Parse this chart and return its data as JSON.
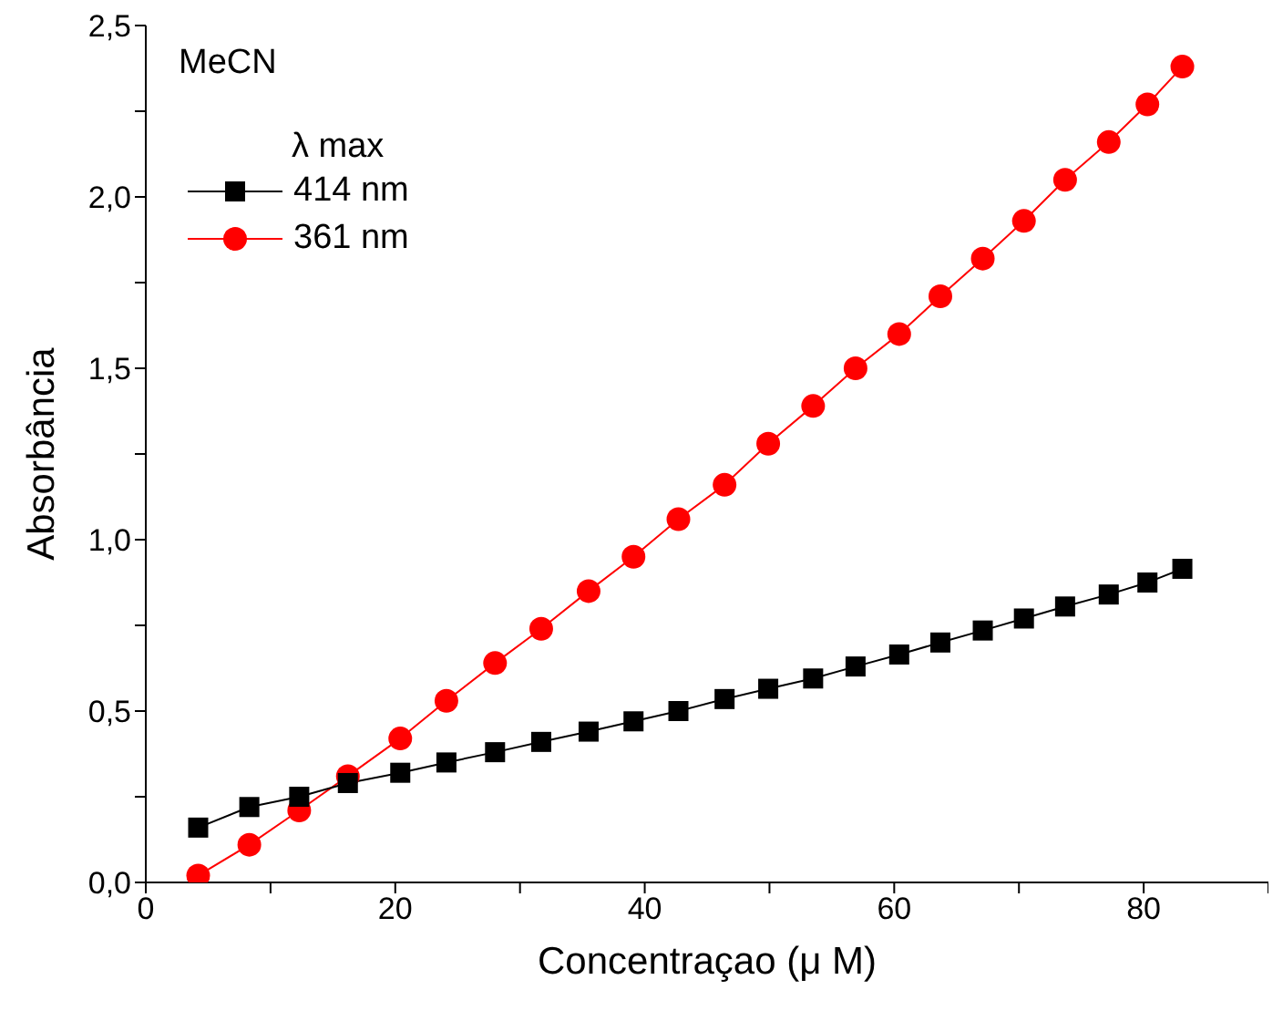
{
  "chart_data": {
    "type": "line",
    "xlabel": "Concentraçao (μ M)",
    "ylabel": "Absorbância",
    "legend_title": "λ max",
    "annotations": [
      "MeCN"
    ],
    "xlim": [
      0,
      90
    ],
    "xticks": [
      0,
      {
        "value": 10,
        "label": null
      },
      20,
      {
        "value": 30,
        "label": null
      },
      40,
      {
        "value": 50,
        "label": null
      },
      60,
      {
        "value": 70,
        "label": null
      },
      80,
      {
        "value": 90,
        "label": null
      }
    ],
    "ylim": [
      0,
      2.5
    ],
    "yticks": [
      {
        "value": 0,
        "label": "0,0"
      },
      {
        "value": 0.25,
        "label": null
      },
      {
        "value": 0.5,
        "label": "0,5"
      },
      {
        "value": 0.75,
        "label": null
      },
      {
        "value": 1,
        "label": "1,0"
      },
      {
        "value": 1.25,
        "label": null
      },
      {
        "value": 1.5,
        "label": "1,5"
      },
      {
        "value": 1.75,
        "label": null
      },
      {
        "value": 2,
        "label": "2,0"
      },
      {
        "value": 2.25,
        "label": null
      },
      {
        "value": 2.5,
        "label": "2,5"
      }
    ],
    "grid": false,
    "legend": "top left",
    "line_style": "solid",
    "x": [
      4.2,
      8.3,
      12.3,
      16.2,
      20.4,
      24.1,
      28.0,
      31.7,
      35.5,
      39.1,
      42.7,
      46.4,
      49.9,
      53.5,
      56.9,
      60.4,
      63.7,
      67.1,
      70.4,
      73.7,
      77.2,
      80.3,
      83.1
    ],
    "series": [
      {
        "name": "414 nm",
        "color": "#000000",
        "marker": "square",
        "values": [
          0.16,
          0.22,
          0.25,
          0.29,
          0.32,
          0.35,
          0.38,
          0.41,
          0.44,
          0.47,
          0.5,
          0.535,
          0.565,
          0.595,
          0.63,
          0.665,
          0.7,
          0.735,
          0.77,
          0.805,
          0.84,
          0.875,
          0.915
        ]
      },
      {
        "name": "361 nm",
        "color": "#ff0000",
        "marker": "circle",
        "values": [
          0.02,
          0.11,
          0.21,
          0.31,
          0.42,
          0.53,
          0.64,
          0.74,
          0.85,
          0.95,
          1.06,
          1.16,
          1.28,
          1.39,
          1.5,
          1.6,
          1.71,
          1.82,
          1.93,
          2.05,
          2.16,
          2.27,
          2.38
        ]
      }
    ]
  }
}
